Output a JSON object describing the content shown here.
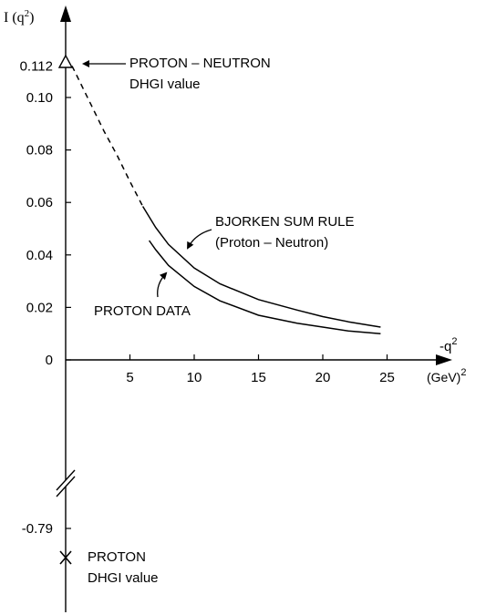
{
  "chart_data": {
    "type": "line",
    "ylabel": "I (q",
    "ylabel_sup": "2",
    "ylabel_close": ")",
    "xlabel": "-q",
    "xlabel_sup": "2",
    "xunit": "(GeV)",
    "xunit_sup": "2",
    "xticks": [
      "5",
      "10",
      "15",
      "20",
      "25"
    ],
    "yticks": [
      "0",
      "0.02",
      "0.04",
      "0.06",
      "0.08",
      "0.10",
      "0.112"
    ],
    "ytick_low": "-0.79",
    "series": [
      {
        "name": "BJORKEN SUM RULE (Proton – Neutron)",
        "style": "solid, dashed extrapolation below -q² = 6",
        "x": [
          0.5,
          1,
          2,
          3,
          4,
          5,
          6,
          7,
          8,
          10,
          12,
          15,
          18,
          20,
          22,
          24.5
        ],
        "y": [
          0.112,
          0.107,
          0.097,
          0.087,
          0.078,
          0.068,
          0.0585,
          0.0505,
          0.044,
          0.035,
          0.029,
          0.023,
          0.019,
          0.0165,
          0.0145,
          0.0125
        ]
      },
      {
        "name": "PROTON DATA",
        "style": "solid",
        "x": [
          6.5,
          7,
          8,
          10,
          12,
          15,
          18,
          20,
          22,
          24.5
        ],
        "y": [
          0.0455,
          0.042,
          0.036,
          0.028,
          0.0225,
          0.017,
          0.014,
          0.0125,
          0.011,
          0.01
        ]
      }
    ],
    "points": [
      {
        "label": "PROTON – NEUTRON DHGI value",
        "x": 0,
        "y": 0.112,
        "marker": "triangle"
      },
      {
        "label": "PROTON DHGI value",
        "x": 0,
        "y": -0.79,
        "marker": "cross"
      }
    ]
  },
  "annotations": {
    "pn_line1": "PROTON – NEUTRON",
    "pn_line2": "DHGI value",
    "bjorken_line1": "BJORKEN SUM RULE",
    "bjorken_line2": "(Proton – Neutron)",
    "proton_data": "PROTON DATA",
    "p_line1": "PROTON",
    "p_line2": "DHGI value"
  }
}
